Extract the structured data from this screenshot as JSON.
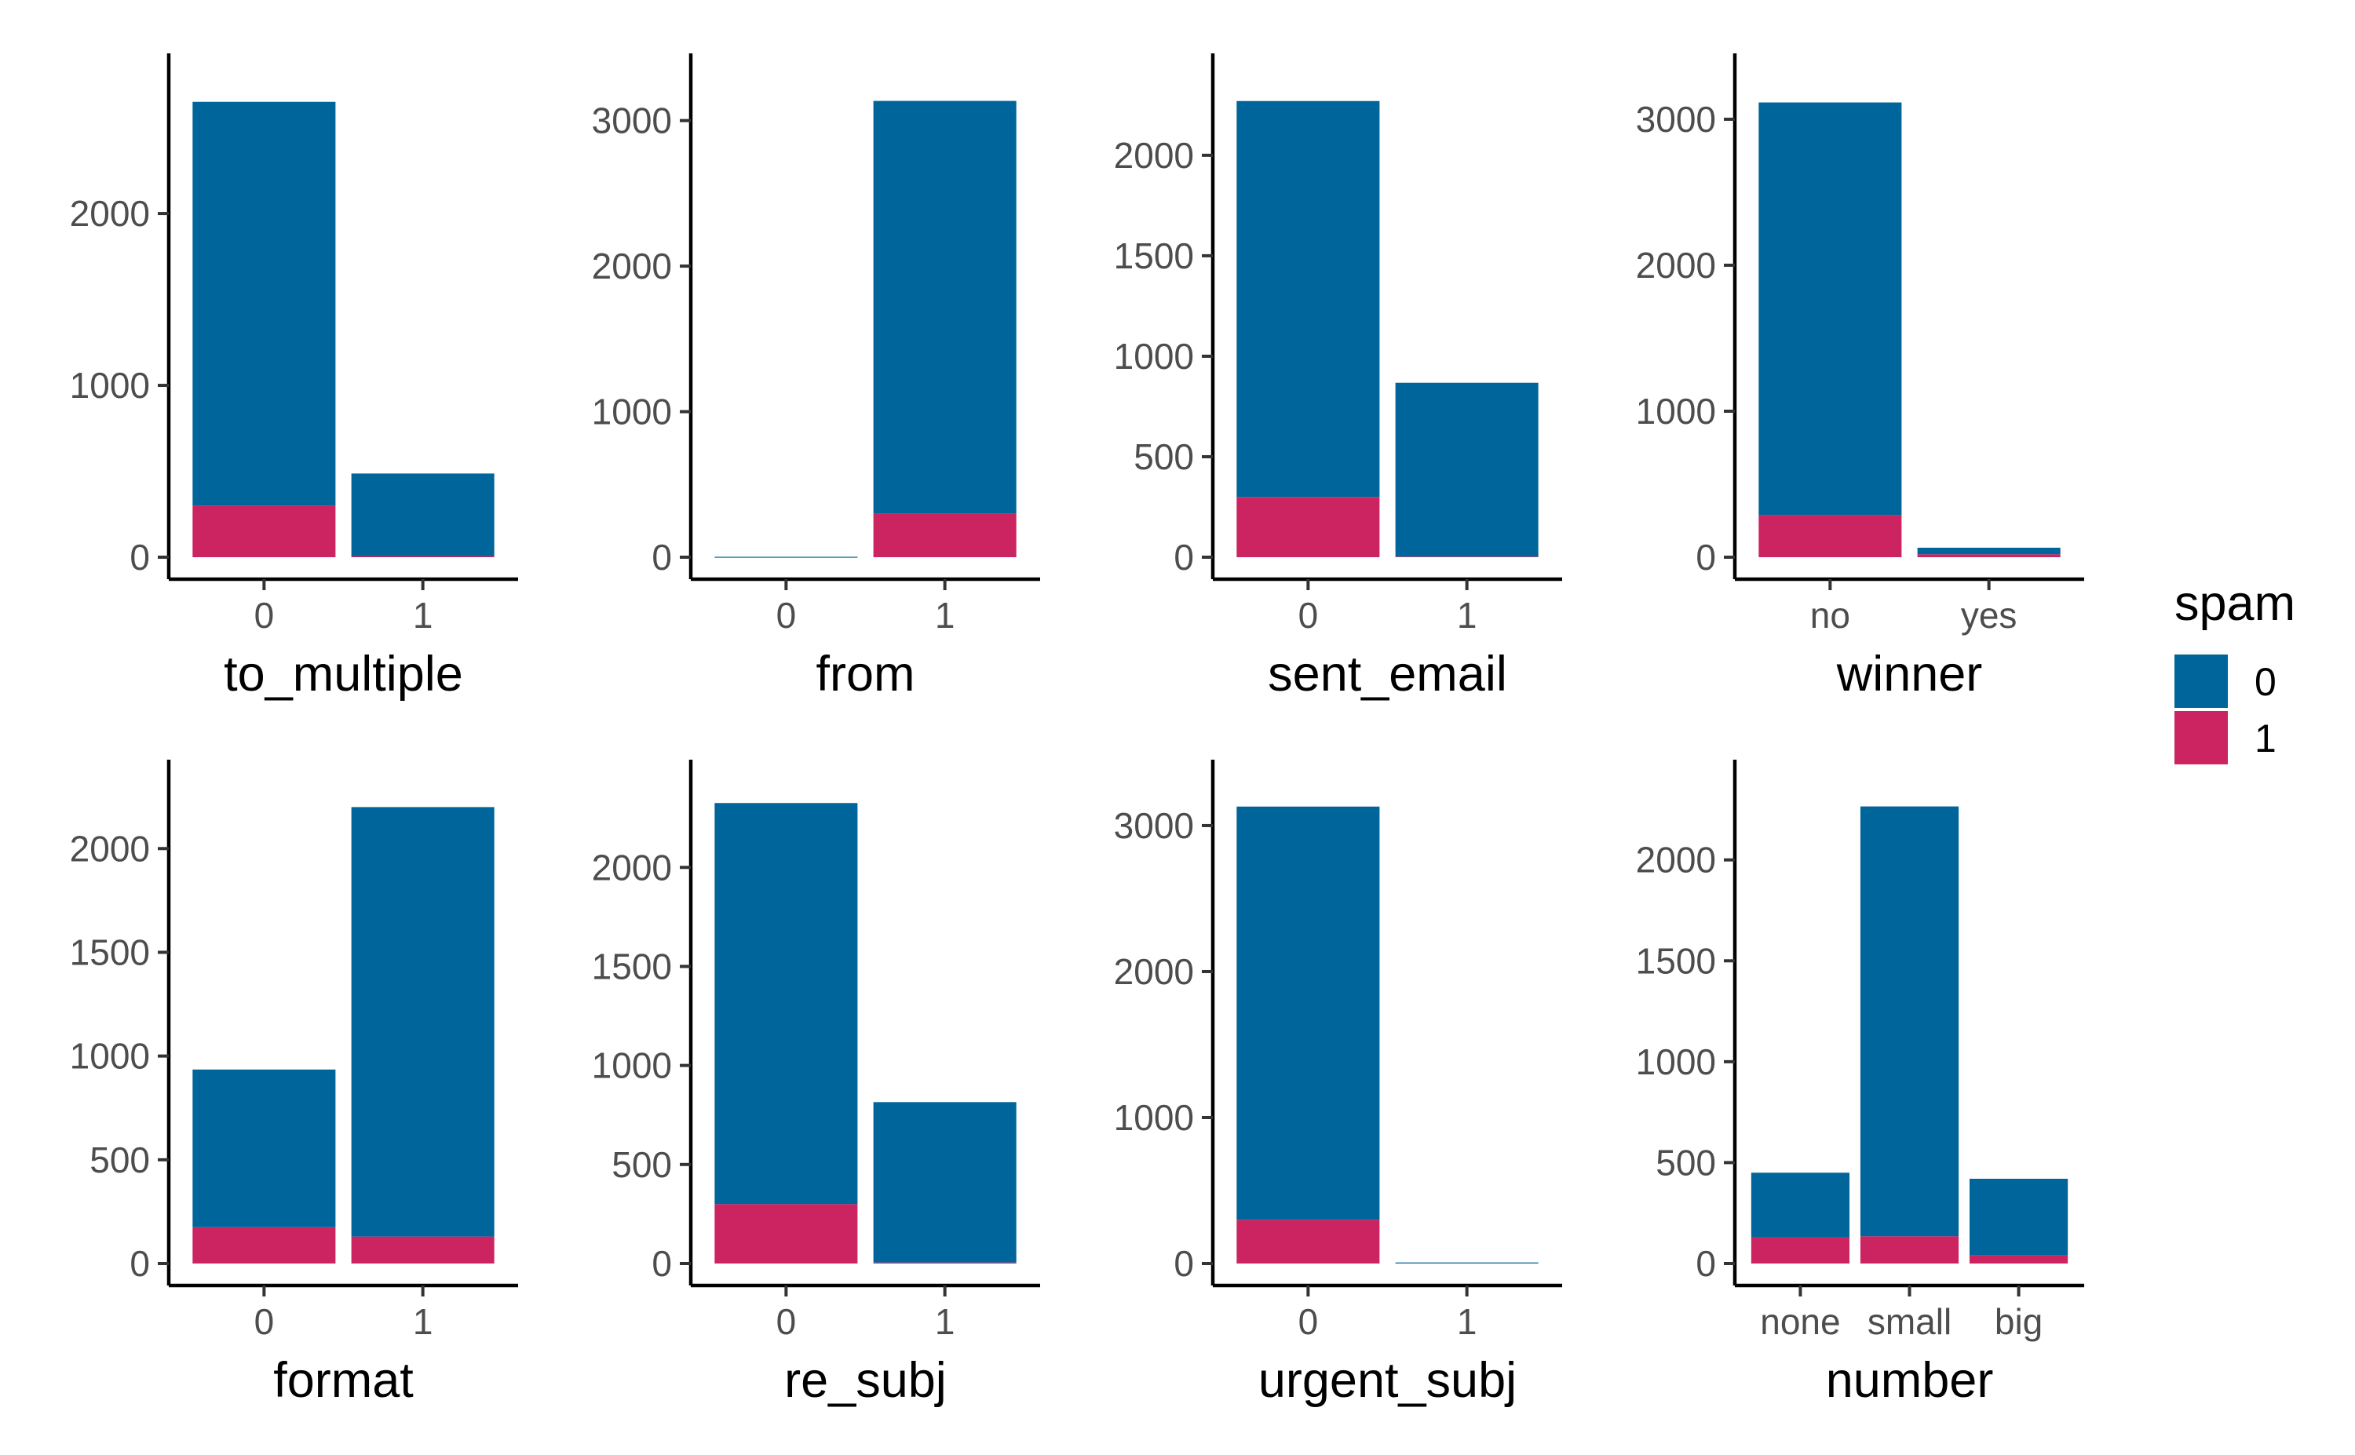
{
  "colors": {
    "spam_0": "#00659b",
    "spam_1": "#cb2460"
  },
  "legend": {
    "title": "spam",
    "items": [
      {
        "label": "0",
        "color": "#00659b"
      },
      {
        "label": "1",
        "color": "#cb2460"
      }
    ],
    "placement": "right"
  },
  "chart_data": [
    {
      "type": "bar",
      "stacked": true,
      "xlabel": "to_multiple",
      "ylabel": "",
      "categories": [
        "0",
        "1"
      ],
      "ylim": [
        0,
        2795
      ],
      "yticks": [
        0,
        1000,
        2000
      ],
      "series": [
        {
          "name": "0",
          "values": [
            2350,
            480
          ]
        },
        {
          "name": "1",
          "values": [
            300,
            7
          ]
        }
      ]
    },
    {
      "type": "bar",
      "stacked": true,
      "xlabel": "from",
      "ylabel": "",
      "categories": [
        "0",
        "1"
      ],
      "ylim": [
        0,
        3300
      ],
      "yticks": [
        0,
        1000,
        2000,
        3000
      ],
      "series": [
        {
          "name": "0",
          "values": [
            2,
            2835
          ]
        },
        {
          "name": "1",
          "values": [
            1,
            300
          ]
        }
      ]
    },
    {
      "type": "bar",
      "stacked": true,
      "xlabel": "sent_email",
      "ylabel": "",
      "categories": [
        "0",
        "1"
      ],
      "ylim": [
        0,
        2390
      ],
      "yticks": [
        0,
        500,
        1000,
        1500,
        2000
      ],
      "series": [
        {
          "name": "0",
          "values": [
            1970,
            865
          ]
        },
        {
          "name": "1",
          "values": [
            300,
            3
          ]
        }
      ]
    },
    {
      "type": "bar",
      "stacked": true,
      "xlabel": "winner",
      "ylabel": "",
      "categories": [
        "no",
        "yes"
      ],
      "ylim": [
        0,
        3290
      ],
      "yticks": [
        0,
        1000,
        2000,
        3000
      ],
      "series": [
        {
          "name": "0",
          "values": [
            2825,
            45
          ]
        },
        {
          "name": "1",
          "values": [
            290,
            20
          ]
        }
      ]
    },
    {
      "type": "bar",
      "stacked": true,
      "xlabel": "format",
      "ylabel": "",
      "categories": [
        "0",
        "1"
      ],
      "ylim": [
        0,
        2315
      ],
      "yticks": [
        0,
        500,
        1000,
        1500,
        2000
      ],
      "series": [
        {
          "name": "0",
          "values": [
            760,
            2070
          ]
        },
        {
          "name": "1",
          "values": [
            175,
            130
          ]
        }
      ]
    },
    {
      "type": "bar",
      "stacked": true,
      "xlabel": "re_subj",
      "ylabel": "",
      "categories": [
        "0",
        "1"
      ],
      "ylim": [
        0,
        2425
      ],
      "yticks": [
        0,
        500,
        1000,
        1500,
        2000
      ],
      "series": [
        {
          "name": "0",
          "values": [
            2025,
            810
          ]
        },
        {
          "name": "1",
          "values": [
            300,
            5
          ]
        }
      ]
    },
    {
      "type": "bar",
      "stacked": true,
      "xlabel": "urgent_subj",
      "ylabel": "",
      "categories": [
        "0",
        "1"
      ],
      "ylim": [
        0,
        3290
      ],
      "yticks": [
        0,
        1000,
        2000,
        3000
      ],
      "series": [
        {
          "name": "0",
          "values": [
            2830,
            7
          ]
        },
        {
          "name": "1",
          "values": [
            300,
            0
          ]
        }
      ]
    },
    {
      "type": "bar",
      "stacked": true,
      "xlabel": "number",
      "ylabel": "",
      "categories": [
        "none",
        "small",
        "big"
      ],
      "ylim": [
        0,
        2380
      ],
      "yticks": [
        0,
        500,
        1000,
        1500,
        2000
      ],
      "series": [
        {
          "name": "0",
          "values": [
            320,
            2130,
            380
          ]
        },
        {
          "name": "1",
          "values": [
            130,
            135,
            40
          ]
        }
      ]
    }
  ]
}
